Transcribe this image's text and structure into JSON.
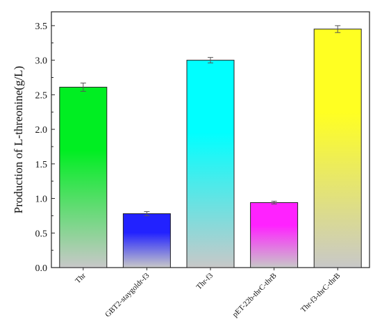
{
  "chart_data": {
    "type": "bar",
    "title": "",
    "xlabel": "",
    "ylabel": "Production of L-threonine(g/L)",
    "ylim": [
      0,
      3.7
    ],
    "yticks": [
      0.0,
      0.5,
      1.0,
      1.5,
      2.0,
      2.5,
      3.0,
      3.5
    ],
    "ytick_labels": [
      "0.0",
      "0.5",
      "1.0",
      "1.5",
      "2.0",
      "2.5",
      "3.0",
      "3.5"
    ],
    "categories": [
      "Thr",
      "GBT2-staygoldr-f3",
      "Thr-f3",
      "pET-22b-thrC-thrB",
      "Thr-f3-thrC-thrB"
    ],
    "values": [
      2.61,
      0.78,
      3.0,
      0.94,
      3.45
    ],
    "errors": [
      0.06,
      0.03,
      0.04,
      0.02,
      0.05
    ],
    "bar_colors": [
      "#00ee22",
      "#2222ff",
      "#00ffff",
      "#ff22ff",
      "#ffff22"
    ],
    "gradient_end_color": "#c8c8c8",
    "grid": false,
    "legend": "none"
  }
}
